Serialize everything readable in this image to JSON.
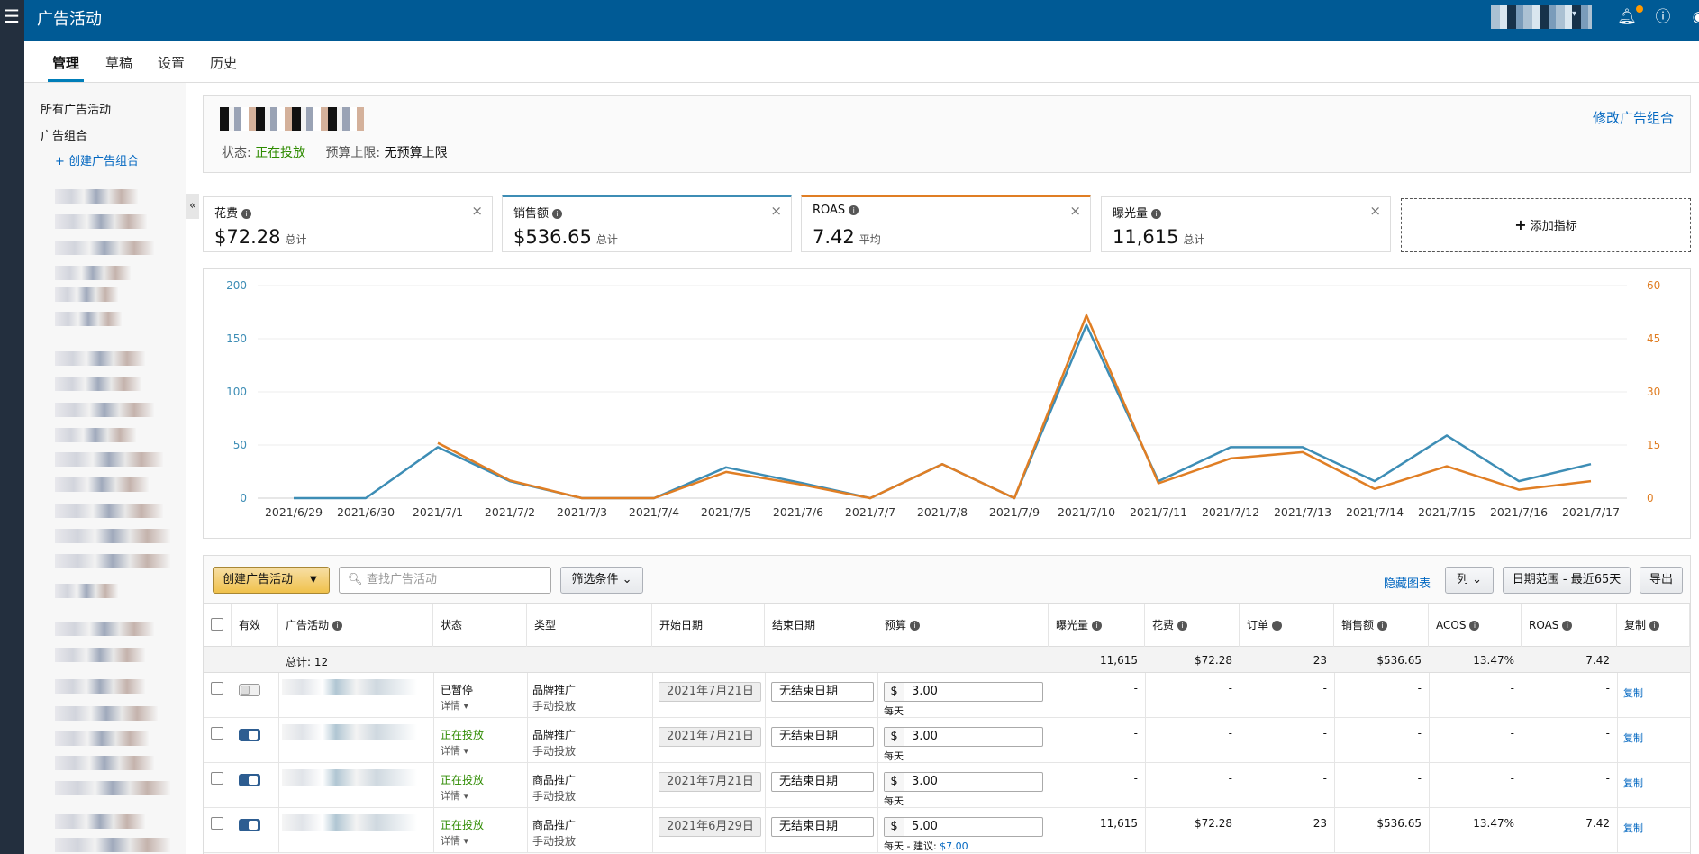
{
  "topbar": {
    "title": "广告活动",
    "icons": [
      "menu-icon",
      "bell-icon",
      "help-icon",
      "user-icon"
    ]
  },
  "subnav": {
    "tabs": [
      {
        "label": "管理"
      },
      {
        "label": "草稿"
      },
      {
        "label": "设置"
      },
      {
        "label": "历史"
      }
    ]
  },
  "sidebar": {
    "all_campaigns": "所有广告活动",
    "portfolios": "广告组合",
    "create_portfolio": "+ 创建广告组合"
  },
  "portfolio": {
    "status_label": "状态:",
    "status_value": "正在投放",
    "budget_label": "预算上限:",
    "budget_value": "无预算上限",
    "edit_label": "修改广告组合"
  },
  "metrics": [
    {
      "label": "花费",
      "value": "$72.28",
      "unit": "总计"
    },
    {
      "label": "销售额",
      "value": "$536.65",
      "unit": "总计"
    },
    {
      "label": "ROAS",
      "value": "7.42",
      "unit": "平均"
    },
    {
      "label": "曝光量",
      "value": "11,615",
      "unit": "总计"
    }
  ],
  "add_metric": "添加指标",
  "chart_data": {
    "type": "line",
    "x": [
      "2021/6/29",
      "2021/6/30",
      "2021/7/1",
      "2021/7/2",
      "2021/7/3",
      "2021/7/4",
      "2021/7/5",
      "2021/7/6",
      "2021/7/7",
      "2021/7/8",
      "2021/7/9",
      "2021/7/10",
      "2021/7/11",
      "2021/7/12",
      "2021/7/13",
      "2021/7/14",
      "2021/7/15",
      "2021/7/16",
      "2021/7/17"
    ],
    "y_left_ticks": [
      "0",
      "50",
      "100",
      "150",
      "200"
    ],
    "y_right_ticks": [
      "0",
      "15",
      "30",
      "45",
      "60"
    ],
    "ylim_left": [
      0,
      200
    ],
    "ylim_right": [
      0,
      60
    ],
    "grid": true,
    "series": [
      {
        "color": "#3d8db5",
        "axis": "left",
        "values": [
          0,
          0,
          48,
          16,
          0,
          0,
          29,
          15,
          0,
          32,
          0,
          163,
          16,
          48,
          48,
          16,
          59,
          16,
          32
        ]
      },
      {
        "color": "#e07e24",
        "axis": "right",
        "values": [
          null,
          null,
          15.6,
          5,
          0,
          0,
          7.4,
          4,
          0,
          9.6,
          0,
          51.6,
          4.2,
          11.2,
          13,
          2.6,
          9,
          2.4,
          4.8
        ]
      }
    ]
  },
  "toolbar": {
    "create_label": "创建广告活动",
    "search_placeholder": "查找广告活动",
    "filter_label": "筛选条件",
    "hide_chart": "隐藏图表",
    "columns_label": "列",
    "date_range": "日期范围 - 最近65天",
    "export_label": "导出"
  },
  "table": {
    "headers": {
      "active": "有效",
      "campaign": "广告活动",
      "status": "状态",
      "type": "类型",
      "start": "开始日期",
      "end": "结束日期",
      "budget": "预算",
      "impressions": "曝光量",
      "spend": "花费",
      "orders": "订单",
      "sales": "销售额",
      "acos": "ACOS",
      "roas": "ROAS",
      "copy": "复制"
    },
    "totals": {
      "label": "总计: 12",
      "impressions": "11,615",
      "spend": "$72.28",
      "orders": "23",
      "sales": "$536.65",
      "acos": "13.47%",
      "roas": "7.42"
    },
    "rows": [
      {
        "active": false,
        "status": "已暂停",
        "details": "详情 ▾",
        "type": "品牌推广",
        "targeting": "手动投放",
        "start": "2021年7月21日",
        "end": "无结束日期",
        "currency": "$",
        "budget": "3.00",
        "daily": "每天",
        "suggest": "",
        "impressions": "-",
        "spend": "-",
        "orders": "-",
        "sales": "-",
        "acos": "-",
        "roas": "-",
        "copy": "复制"
      },
      {
        "active": true,
        "status": "正在投放",
        "details": "详情 ▾",
        "type": "品牌推广",
        "targeting": "手动投放",
        "start": "2021年7月21日",
        "end": "无结束日期",
        "currency": "$",
        "budget": "3.00",
        "daily": "每天",
        "suggest": "",
        "impressions": "-",
        "spend": "-",
        "orders": "-",
        "sales": "-",
        "acos": "-",
        "roas": "-",
        "copy": "复制"
      },
      {
        "active": true,
        "status": "正在投放",
        "details": "详情 ▾",
        "type": "商品推广",
        "targeting": "手动投放",
        "start": "2021年7月21日",
        "end": "无结束日期",
        "currency": "$",
        "budget": "3.00",
        "daily": "每天",
        "suggest": "",
        "impressions": "-",
        "spend": "-",
        "orders": "-",
        "sales": "-",
        "acos": "-",
        "roas": "-",
        "copy": "复制"
      },
      {
        "active": true,
        "status": "正在投放",
        "details": "详情 ▾",
        "type": "商品推广",
        "targeting": "手动投放",
        "start": "2021年6月29日",
        "end": "无结束日期",
        "currency": "$",
        "budget": "5.00",
        "daily": "每天 - 建议: ",
        "suggest": "$7.00",
        "impressions": "11,615",
        "spend": "$72.28",
        "orders": "23",
        "sales": "$536.65",
        "acos": "13.47%",
        "roas": "7.42",
        "copy": "复制"
      }
    ]
  }
}
